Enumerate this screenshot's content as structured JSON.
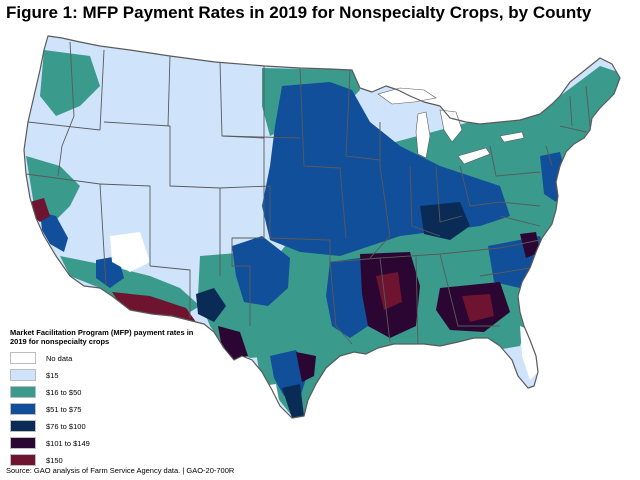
{
  "figure": {
    "title": "Figure 1: MFP Payment Rates in 2019 for Nonspecialty Crops, by County",
    "source": "Source: GAO analysis of Farm Service Agency data.  |  GAO-20-700R"
  },
  "legend": {
    "title": "Market Facilitation Program (MFP) payment rates in 2019 for nonspecialty crops",
    "items": [
      {
        "label": "No data",
        "color": "#ffffff"
      },
      {
        "label": "$15",
        "color": "#cfe4fa"
      },
      {
        "label": "$16 to $50",
        "color": "#3a9a8c"
      },
      {
        "label": "$51 to $75",
        "color": "#114f9a"
      },
      {
        "label": "$76 to $100",
        "color": "#0b2b57"
      },
      {
        "label": "$101 to $149",
        "color": "#2b0633"
      },
      {
        "label": "$150",
        "color": "#6e1430"
      }
    ]
  },
  "map": {
    "subject": "Contiguous United States counties",
    "lakes_color": "#ffffff",
    "border_color": "#5a5a5a"
  }
}
